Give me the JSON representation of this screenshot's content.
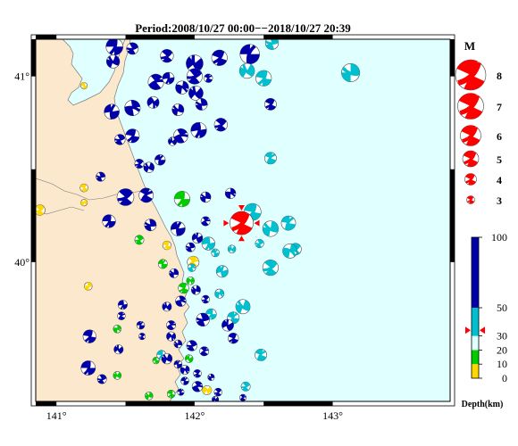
{
  "title": "Period:2008/10/27 00:00−−2018/10/27 20:39",
  "map": {
    "lon_ticks": [
      {
        "value": 141,
        "label": "141°"
      },
      {
        "value": 142,
        "label": "142°"
      },
      {
        "value": 143,
        "label": "143°"
      }
    ],
    "lat_ticks": [
      {
        "value": 41,
        "label": "41°"
      },
      {
        "value": 40,
        "label": "40°"
      }
    ],
    "lon_range": [
      140.85,
      143.85
    ],
    "lat_range": [
      39.25,
      41.2
    ],
    "land_color": "#fce8cd",
    "sea_color": "#e0ffff"
  },
  "magnitude_legend": {
    "title": "M",
    "items": [
      {
        "label": "8",
        "value": 8
      },
      {
        "label": "7",
        "value": 7
      },
      {
        "label": "6",
        "value": 6
      },
      {
        "label": "5",
        "value": 5
      },
      {
        "label": "4",
        "value": 4
      },
      {
        "label": "3",
        "value": 3
      }
    ]
  },
  "depth_legend": {
    "title": "Depth(km)",
    "ticks": [
      {
        "label": "100",
        "value": 100
      },
      {
        "label": "50",
        "value": 50
      },
      {
        "label": "30",
        "value": 30
      },
      {
        "label": "20",
        "value": 20
      },
      {
        "label": "10",
        "value": 10
      },
      {
        "label": "0",
        "value": 0
      }
    ],
    "bands": [
      {
        "from": 0,
        "to": 10,
        "color": "#ffd700"
      },
      {
        "from": 10,
        "to": 20,
        "color": "#00cc00"
      },
      {
        "from": 20,
        "to": 30,
        "color": "#e0ffff"
      },
      {
        "from": 30,
        "to": 50,
        "color": "#00c0d0"
      },
      {
        "from": 50,
        "to": 100,
        "color": "#0000a8"
      }
    ],
    "highlight_depth": 34
  },
  "events": [
    {
      "lon": 141.42,
      "lat": 41.16,
      "mag": 4.8,
      "color": "#0000a8",
      "rot": 20
    },
    {
      "lon": 141.55,
      "lat": 41.15,
      "mag": 4.0,
      "color": "#0000a8",
      "rot": 80
    },
    {
      "lon": 141.41,
      "lat": 41.08,
      "mag": 4.2,
      "color": "#0000a8",
      "rot": 130
    },
    {
      "lon": 141.8,
      "lat": 41.11,
      "mag": 4.2,
      "color": "#0000a8",
      "rot": 60
    },
    {
      "lon": 142.0,
      "lat": 41.07,
      "mag": 4.8,
      "color": "#0000a8",
      "rot": 160
    },
    {
      "lon": 142.18,
      "lat": 41.1,
      "mag": 4.6,
      "color": "#0000a8",
      "rot": 40
    },
    {
      "lon": 142.4,
      "lat": 41.12,
      "mag": 5.2,
      "color": "#0000a8",
      "rot": 200
    },
    {
      "lon": 142.56,
      "lat": 41.18,
      "mag": 4.2,
      "color": "#00c0d0",
      "rot": 90
    },
    {
      "lon": 142.38,
      "lat": 41.03,
      "mag": 4.5,
      "color": "#00c0d0",
      "rot": 140
    },
    {
      "lon": 142.5,
      "lat": 40.99,
      "mag": 4.6,
      "color": "#00c0d0",
      "rot": 30
    },
    {
      "lon": 143.13,
      "lat": 41.02,
      "mag": 5.0,
      "color": "#00c0d0",
      "rot": 110
    },
    {
      "lon": 141.2,
      "lat": 40.95,
      "mag": 3.2,
      "color": "#ffd700",
      "rot": 20
    },
    {
      "lon": 141.72,
      "lat": 40.97,
      "mag": 4.6,
      "color": "#0000a8",
      "rot": 250
    },
    {
      "lon": 141.81,
      "lat": 40.99,
      "mag": 4.0,
      "color": "#0000a8",
      "rot": 10
    },
    {
      "lon": 142.0,
      "lat": 41.0,
      "mag": 4.6,
      "color": "#0000a8",
      "rot": 70
    },
    {
      "lon": 141.91,
      "lat": 40.94,
      "mag": 4.2,
      "color": "#0000a8",
      "rot": 300
    },
    {
      "lon": 142.01,
      "lat": 40.91,
      "mag": 4.4,
      "color": "#0000a8",
      "rot": 150
    },
    {
      "lon": 142.1,
      "lat": 40.99,
      "mag": 3.5,
      "color": "#0000a8",
      "rot": 220
    },
    {
      "lon": 142.05,
      "lat": 40.85,
      "mag": 4.0,
      "color": "#0000a8",
      "rot": 100
    },
    {
      "lon": 142.03,
      "lat": 40.71,
      "mag": 4.6,
      "color": "#0000a8",
      "rot": 10
    },
    {
      "lon": 142.19,
      "lat": 40.74,
      "mag": 4.2,
      "color": "#0000a8",
      "rot": 60
    },
    {
      "lon": 141.4,
      "lat": 40.81,
      "mag": 4.5,
      "color": "#0000a8",
      "rot": 190
    },
    {
      "lon": 141.55,
      "lat": 40.83,
      "mag": 4.6,
      "color": "#0000a8",
      "rot": 280
    },
    {
      "lon": 141.7,
      "lat": 40.86,
      "mag": 4.0,
      "color": "#0000a8",
      "rot": 340
    },
    {
      "lon": 141.88,
      "lat": 40.82,
      "mag": 4.0,
      "color": "#0000a8",
      "rot": 120
    },
    {
      "lon": 141.55,
      "lat": 40.68,
      "mag": 4.3,
      "color": "#0000a8",
      "rot": 30
    },
    {
      "lon": 141.46,
      "lat": 40.66,
      "mag": 3.8,
      "color": "#0000a8",
      "rot": 80
    },
    {
      "lon": 141.84,
      "lat": 40.65,
      "mag": 3.5,
      "color": "#0000a8",
      "rot": 150
    },
    {
      "lon": 141.9,
      "lat": 40.68,
      "mag": 4.4,
      "color": "#0000a8",
      "rot": 260
    },
    {
      "lon": 142.55,
      "lat": 40.85,
      "mag": 4.0,
      "color": "#0000a8",
      "rot": 45
    },
    {
      "lon": 142.55,
      "lat": 40.56,
      "mag": 4.0,
      "color": "#00c0d0",
      "rot": 220
    },
    {
      "lon": 141.6,
      "lat": 40.53,
      "mag": 3.6,
      "color": "#0000a8",
      "rot": 60
    },
    {
      "lon": 141.67,
      "lat": 40.51,
      "mag": 3.8,
      "color": "#0000a8",
      "rot": 130
    },
    {
      "lon": 141.75,
      "lat": 40.55,
      "mag": 3.8,
      "color": "#0000a8",
      "rot": 200
    },
    {
      "lon": 141.32,
      "lat": 40.46,
      "mag": 3.6,
      "color": "#0000a8",
      "rot": 90
    },
    {
      "lon": 141.2,
      "lat": 40.4,
      "mag": 3.4,
      "color": "#ffd700",
      "rot": 30
    },
    {
      "lon": 141.2,
      "lat": 40.32,
      "mag": 3.2,
      "color": "#ffd700",
      "rot": 300
    },
    {
      "lon": 141.5,
      "lat": 40.35,
      "mag": 4.8,
      "color": "#0000a8",
      "rot": 60
    },
    {
      "lon": 141.65,
      "lat": 40.36,
      "mag": 4.4,
      "color": "#0000a8",
      "rot": 230
    },
    {
      "lon": 141.91,
      "lat": 40.34,
      "mag": 4.6,
      "color": "#00cc00",
      "rot": 20
    },
    {
      "lon": 142.08,
      "lat": 40.35,
      "mag": 3.8,
      "color": "#0000a8",
      "rot": 110
    },
    {
      "lon": 142.26,
      "lat": 40.37,
      "mag": 3.8,
      "color": "#0000a8",
      "rot": 290
    },
    {
      "lon": 140.88,
      "lat": 40.28,
      "mag": 3.8,
      "color": "#ffd700",
      "rot": 60
    },
    {
      "lon": 141.38,
      "lat": 40.22,
      "mag": 4.2,
      "color": "#0000a8",
      "rot": 20
    },
    {
      "lon": 141.68,
      "lat": 40.2,
      "mag": 4.0,
      "color": "#0000a8",
      "rot": 100
    },
    {
      "lon": 141.88,
      "lat": 40.18,
      "mag": 4.4,
      "color": "#0000a8",
      "rot": 190
    },
    {
      "lon": 142.08,
      "lat": 40.22,
      "mag": 3.6,
      "color": "#0000a8",
      "rot": 250
    },
    {
      "lon": 142.42,
      "lat": 40.27,
      "mag": 4.8,
      "color": "#00c0d0",
      "rot": 30
    },
    {
      "lon": 142.55,
      "lat": 40.18,
      "mag": 4.6,
      "color": "#00c0d0",
      "rot": 120
    },
    {
      "lon": 142.68,
      "lat": 40.21,
      "mag": 4.4,
      "color": "#00c0d0",
      "rot": 210
    },
    {
      "lon": 142.73,
      "lat": 40.07,
      "mag": 4.0,
      "color": "#00c0d0",
      "rot": 60
    },
    {
      "lon": 142.69,
      "lat": 40.06,
      "mag": 4.4,
      "color": "#00c0d0",
      "rot": 300
    },
    {
      "lon": 142.47,
      "lat": 40.1,
      "mag": 3.5,
      "color": "#00c0d0",
      "rot": 80
    },
    {
      "lon": 142.27,
      "lat": 40.07,
      "mag": 3.4,
      "color": "#00c0d0",
      "rot": 150
    },
    {
      "lon": 142.15,
      "lat": 40.05,
      "mag": 3.4,
      "color": "#00c0d0",
      "rot": 200
    },
    {
      "lon": 142.1,
      "lat": 40.1,
      "mag": 4.2,
      "color": "#00c0d0",
      "rot": 10
    },
    {
      "lon": 141.97,
      "lat": 40.08,
      "mag": 3.6,
      "color": "#0000a8",
      "rot": 90
    },
    {
      "lon": 142.02,
      "lat": 40.13,
      "mag": 3.8,
      "color": "#0000a8",
      "rot": 170
    },
    {
      "lon": 141.99,
      "lat": 40.0,
      "mag": 4.0,
      "color": "#ffd700",
      "rot": 240
    },
    {
      "lon": 141.8,
      "lat": 40.09,
      "mag": 3.5,
      "color": "#ffd700",
      "rot": 30
    },
    {
      "lon": 141.6,
      "lat": 40.12,
      "mag": 3.6,
      "color": "#00cc00",
      "rot": 70
    },
    {
      "lon": 141.85,
      "lat": 39.94,
      "mag": 3.6,
      "color": "#0000a8",
      "rot": 110
    },
    {
      "lon": 141.77,
      "lat": 39.99,
      "mag": 3.6,
      "color": "#00cc00",
      "rot": 200
    },
    {
      "lon": 141.98,
      "lat": 39.97,
      "mag": 3.4,
      "color": "#00c0d0",
      "rot": 260
    },
    {
      "lon": 141.97,
      "lat": 39.9,
      "mag": 3.4,
      "color": "#00cc00",
      "rot": 320
    },
    {
      "lon": 141.92,
      "lat": 39.86,
      "mag": 3.8,
      "color": "#00cc00",
      "rot": 40
    },
    {
      "lon": 142.01,
      "lat": 39.85,
      "mag": 3.6,
      "color": "#0000a8",
      "rot": 120
    },
    {
      "lon": 142.2,
      "lat": 39.95,
      "mag": 4.0,
      "color": "#00c0d0",
      "rot": 180
    },
    {
      "lon": 142.55,
      "lat": 39.97,
      "mag": 4.6,
      "color": "#00c0d0",
      "rot": 60
    },
    {
      "lon": 141.23,
      "lat": 39.87,
      "mag": 3.4,
      "color": "#ffd700",
      "rot": 90
    },
    {
      "lon": 141.48,
      "lat": 39.77,
      "mag": 3.6,
      "color": "#0000a8",
      "rot": 10
    },
    {
      "lon": 141.47,
      "lat": 39.71,
      "mag": 3.4,
      "color": "#0000a8",
      "rot": 230
    },
    {
      "lon": 141.8,
      "lat": 39.76,
      "mag": 3.6,
      "color": "#0000a8",
      "rot": 150
    },
    {
      "lon": 141.9,
      "lat": 39.79,
      "mag": 3.8,
      "color": "#0000a8",
      "rot": 270
    },
    {
      "lon": 142.08,
      "lat": 39.8,
      "mag": 3.4,
      "color": "#0000a8",
      "rot": 60
    },
    {
      "lon": 142.18,
      "lat": 39.83,
      "mag": 3.6,
      "color": "#00c0d0",
      "rot": 300
    },
    {
      "lon": 142.35,
      "lat": 39.76,
      "mag": 4.4,
      "color": "#00c0d0",
      "rot": 130
    },
    {
      "lon": 142.28,
      "lat": 39.7,
      "mag": 4.0,
      "color": "#00c0d0",
      "rot": 210
    },
    {
      "lon": 142.12,
      "lat": 39.72,
      "mag": 3.8,
      "color": "#00c0d0",
      "rot": 20
    },
    {
      "lon": 142.06,
      "lat": 39.69,
      "mag": 4.2,
      "color": "#0000a8",
      "rot": 90
    },
    {
      "lon": 142.24,
      "lat": 39.66,
      "mag": 4.0,
      "color": "#0000a8",
      "rot": 170
    },
    {
      "lon": 142.28,
      "lat": 39.59,
      "mag": 3.8,
      "color": "#0000a8",
      "rot": 40
    },
    {
      "lon": 141.83,
      "lat": 39.66,
      "mag": 3.6,
      "color": "#0000a8",
      "rot": 250
    },
    {
      "lon": 141.83,
      "lat": 39.6,
      "mag": 3.6,
      "color": "#0000a8",
      "rot": 330
    },
    {
      "lon": 141.88,
      "lat": 39.56,
      "mag": 3.4,
      "color": "#0000a8",
      "rot": 110
    },
    {
      "lon": 141.61,
      "lat": 39.66,
      "mag": 3.4,
      "color": "#0000a8",
      "rot": 200
    },
    {
      "lon": 141.62,
      "lat": 39.6,
      "mag": 3.2,
      "color": "#0000a8",
      "rot": 60
    },
    {
      "lon": 141.44,
      "lat": 39.64,
      "mag": 3.4,
      "color": "#00cc00",
      "rot": 290
    },
    {
      "lon": 141.24,
      "lat": 39.6,
      "mag": 4.2,
      "color": "#0000a8",
      "rot": 30
    },
    {
      "lon": 141.45,
      "lat": 39.53,
      "mag": 3.6,
      "color": "#0000a8",
      "rot": 160
    },
    {
      "lon": 141.98,
      "lat": 39.55,
      "mag": 3.8,
      "color": "#0000a8",
      "rot": 80
    },
    {
      "lon": 142.07,
      "lat": 39.52,
      "mag": 3.6,
      "color": "#0000a8",
      "rot": 240
    },
    {
      "lon": 141.76,
      "lat": 39.5,
      "mag": 3.6,
      "color": "#00c0d0",
      "rot": 20
    },
    {
      "lon": 141.8,
      "lat": 39.48,
      "mag": 3.8,
      "color": "#0000a8",
      "rot": 130
    },
    {
      "lon": 141.88,
      "lat": 39.45,
      "mag": 3.4,
      "color": "#0000a8",
      "rot": 190
    },
    {
      "lon": 141.93,
      "lat": 39.42,
      "mag": 3.6,
      "color": "#0000a8",
      "rot": 310
    },
    {
      "lon": 142.02,
      "lat": 39.4,
      "mag": 3.4,
      "color": "#0000a8",
      "rot": 50
    },
    {
      "lon": 142.12,
      "lat": 39.38,
      "mag": 3.2,
      "color": "#0000a8",
      "rot": 100
    },
    {
      "lon": 142.48,
      "lat": 39.5,
      "mag": 4.0,
      "color": "#00c0d0",
      "rot": 220
    },
    {
      "lon": 141.72,
      "lat": 39.47,
      "mag": 3.2,
      "color": "#00cc00",
      "rot": 10
    },
    {
      "lon": 141.96,
      "lat": 39.48,
      "mag": 3.4,
      "color": "#00cc00",
      "rot": 170
    },
    {
      "lon": 141.23,
      "lat": 39.43,
      "mag": 4.4,
      "color": "#0000a8",
      "rot": 20
    },
    {
      "lon": 141.33,
      "lat": 39.37,
      "mag": 3.6,
      "color": "#0000a8",
      "rot": 80
    },
    {
      "lon": 141.44,
      "lat": 39.39,
      "mag": 3.4,
      "color": "#00cc00",
      "rot": 140
    },
    {
      "lon": 141.93,
      "lat": 39.36,
      "mag": 3.4,
      "color": "#0000a8",
      "rot": 200
    },
    {
      "lon": 142.02,
      "lat": 39.33,
      "mag": 3.8,
      "color": "#0000a8",
      "rot": 260
    },
    {
      "lon": 142.09,
      "lat": 39.31,
      "mag": 3.6,
      "color": "#ffd700",
      "rot": 330
    },
    {
      "lon": 142.17,
      "lat": 39.3,
      "mag": 3.4,
      "color": "#0000a8",
      "rot": 60
    },
    {
      "lon": 141.67,
      "lat": 39.28,
      "mag": 3.4,
      "color": "#00cc00",
      "rot": 120
    },
    {
      "lon": 141.83,
      "lat": 39.29,
      "mag": 3.4,
      "color": "#00cc00",
      "rot": 30
    },
    {
      "lon": 141.9,
      "lat": 39.3,
      "mag": 3.2,
      "color": "#0000a8",
      "rot": 210
    },
    {
      "lon": 142.37,
      "lat": 39.33,
      "mag": 3.6,
      "color": "#00c0d0",
      "rot": 70
    },
    {
      "lon": 142.15,
      "lat": 39.26,
      "mag": 3.2,
      "color": "#0000a8",
      "rot": 150
    },
    {
      "lon": 142.35,
      "lat": 39.27,
      "mag": 3.2,
      "color": "#0000a8",
      "rot": 240
    }
  ],
  "main_event": {
    "lon": 142.34,
    "lat": 40.21,
    "mag": 5.8,
    "color": "#ff0000",
    "rot": 45
  }
}
